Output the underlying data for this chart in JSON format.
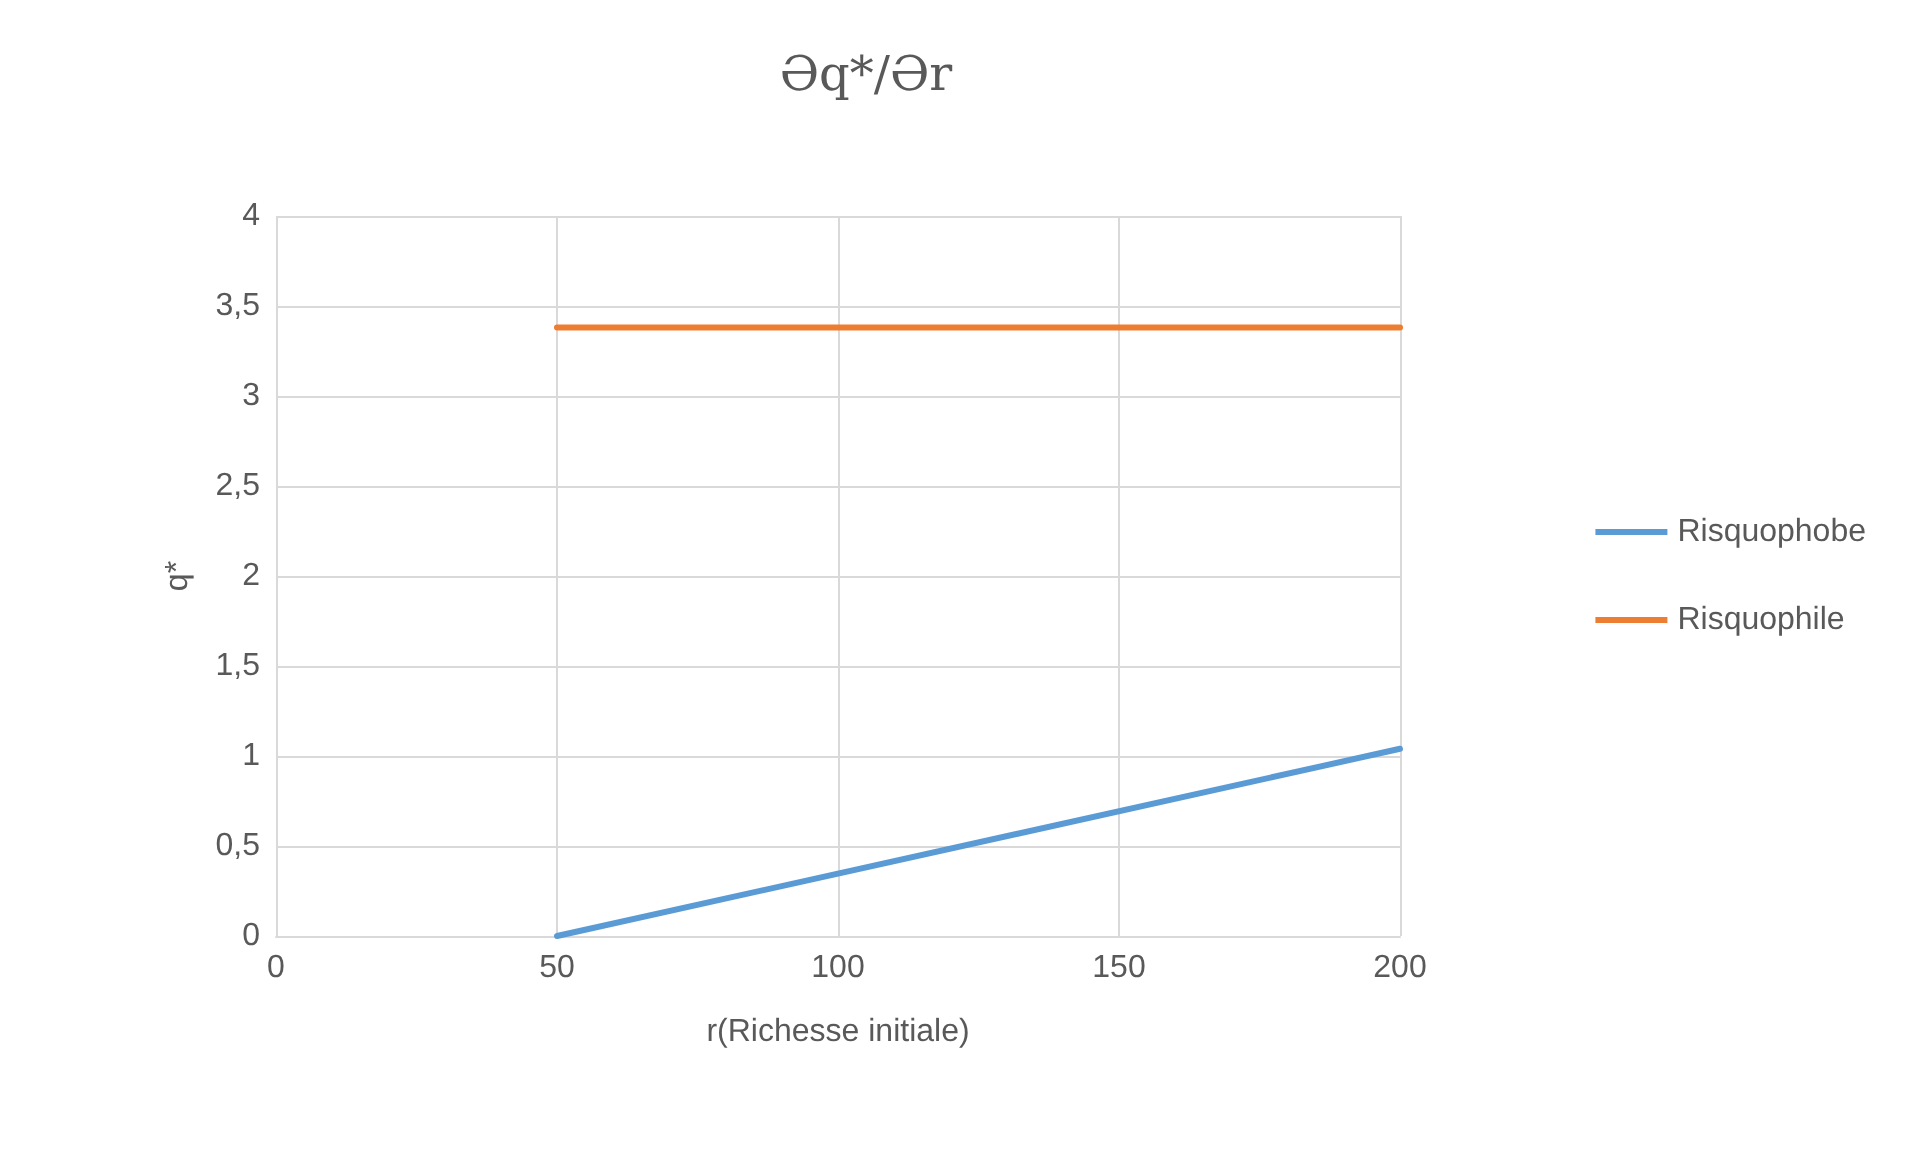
{
  "chart_data": {
    "type": "line",
    "title": "Əq*/Ər",
    "xlabel": "r(Richesse initiale)",
    "ylabel": "q*",
    "xlim": [
      0,
      200
    ],
    "xticks": [
      0,
      50,
      100,
      150,
      200
    ],
    "ylim": [
      0,
      4
    ],
    "yticks": [
      0,
      {
        "value": 0.5,
        "label": "0,5"
      },
      1,
      {
        "value": 1.5,
        "label": "1,5"
      },
      2,
      {
        "value": 2.5,
        "label": "2,5"
      },
      3,
      {
        "value": 3.5,
        "label": "3,5"
      },
      4
    ],
    "grid": true,
    "legend": "right",
    "marker": "none",
    "line_style": "solid",
    "x": [
      50,
      200
    ],
    "series": [
      {
        "name": "Risquophobe",
        "color": "#5b9bd5",
        "values": [
          0,
          1.04
        ]
      },
      {
        "name": "Risquophile",
        "color": "#ed7d31",
        "values": [
          3.38,
          3.38
        ]
      }
    ]
  }
}
